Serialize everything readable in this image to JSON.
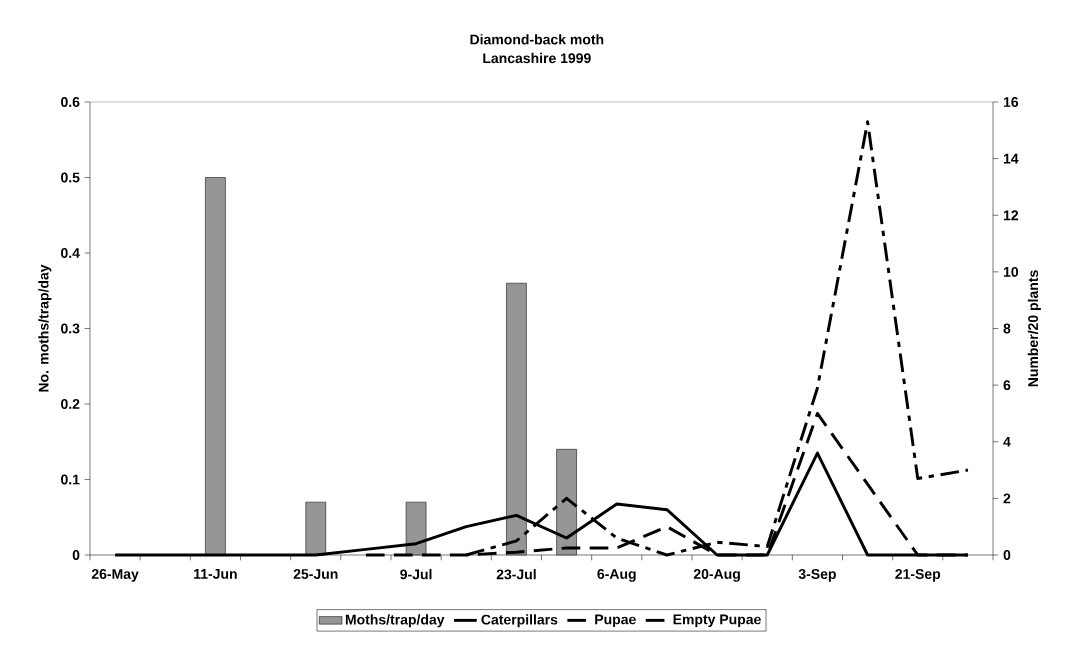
{
  "chart_data": {
    "type": "line",
    "title": "Diamond-back moth",
    "subtitle": "Lancashire 1999",
    "ylabel": "No. moths/trap/day",
    "y2label": "Number/20 plants",
    "categories": [
      "26-May",
      null,
      "11-Jun",
      null,
      "25-Jun",
      null,
      "9-Jul",
      null,
      "23-Jul",
      null,
      "6-Aug",
      null,
      "20-Aug",
      null,
      "3-Sep",
      null,
      "21-Sep",
      null
    ],
    "ylim": [
      0,
      0.6
    ],
    "yticks": [
      0,
      0.1,
      0.2,
      0.3,
      0.4,
      0.5,
      0.6
    ],
    "y2lim": [
      0,
      16
    ],
    "y2ticks": [
      0,
      2,
      4,
      6,
      8,
      10,
      12,
      14,
      16
    ],
    "legend": "bottom",
    "series": [
      {
        "name": "Moths/trap/day",
        "type": "bar",
        "color": "#969696",
        "values": [
          null,
          null,
          0.5,
          null,
          0.07,
          null,
          0.07,
          null,
          0.36,
          0.14,
          null,
          null,
          null,
          null,
          null,
          null,
          null,
          null
        ]
      },
      {
        "name": "Caterpillars",
        "axis": "y2",
        "color": "#000000",
        "line_style": "solid",
        "values": [
          0,
          0,
          0,
          0,
          0,
          0.2,
          0.4,
          1.0,
          1.4,
          0.6,
          1.8,
          1.6,
          0,
          0,
          3.6,
          0,
          0,
          0
        ]
      },
      {
        "name": "Pupae",
        "axis": "y2",
        "color": "#000000",
        "line_style": "dashed",
        "values": [
          null,
          null,
          null,
          null,
          null,
          0,
          0,
          0,
          0.1,
          0.25,
          0.25,
          1.0,
          0,
          0,
          5.0,
          2.5,
          0,
          0
        ]
      },
      {
        "name": "Empty Pupae",
        "axis": "y2",
        "color": "#000000",
        "line_style": "dashed",
        "values": [
          null,
          null,
          null,
          null,
          null,
          null,
          null,
          0,
          0.5,
          2.0,
          0.6,
          0,
          0.45,
          0.3,
          5.9,
          15.3,
          2.7,
          3.0
        ]
      }
    ]
  }
}
